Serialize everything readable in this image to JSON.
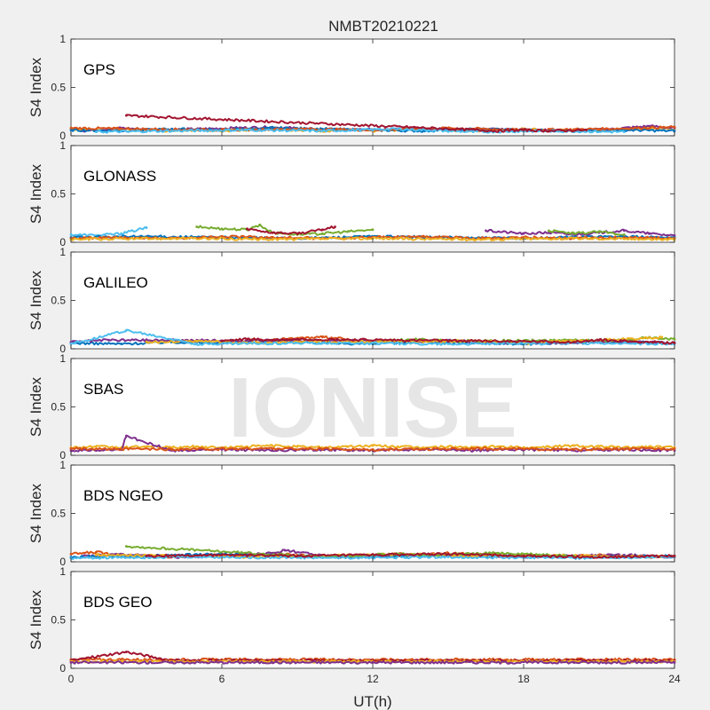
{
  "chart_data": {
    "type": "scatter",
    "title": "NMBT20210221",
    "xlabel": "UT(h)",
    "ylabel": "S4 Index",
    "xlim": [
      0,
      24
    ],
    "ylim": [
      0,
      1
    ],
    "xticks": [
      0,
      6,
      12,
      18,
      24
    ],
    "xtick_labels": [
      "0",
      "6",
      "12",
      "18",
      "24"
    ],
    "yticks": [
      0,
      0.5,
      1
    ],
    "ytick_labels": [
      "0",
      "0.5",
      "1"
    ],
    "watermark": "IONISE",
    "grid": false,
    "colors": [
      "#0072BD",
      "#D95319",
      "#EDB120",
      "#7E2F8E",
      "#77AC30",
      "#4DBEEE",
      "#A2142F"
    ],
    "panels": [
      {
        "label": "GPS",
        "series": [
          {
            "color": "#EDB120",
            "x": [
              0,
              1,
              2,
              3,
              4,
              5,
              6,
              7,
              8,
              9,
              10,
              11,
              12,
              13,
              14,
              15,
              16,
              17,
              18,
              19,
              20,
              21,
              22,
              23,
              24
            ],
            "y": [
              0.07,
              0.06,
              0.07,
              0.06,
              0.05,
              0.06,
              0.05,
              0.06,
              0.07,
              0.06,
              0.05,
              0.06,
              0.05,
              0.06,
              0.07,
              0.06,
              0.05,
              0.06,
              0.07,
              0.06,
              0.05,
              0.06,
              0.07,
              0.08,
              0.07
            ]
          },
          {
            "color": "#7E2F8E",
            "x": [
              0.5,
              2,
              3.5,
              5,
              6.5,
              8,
              9.5,
              11,
              12.5,
              14,
              15.5,
              17,
              18.5,
              20,
              21.5,
              23,
              24
            ],
            "y": [
              0.05,
              0.08,
              0.06,
              0.07,
              0.08,
              0.09,
              0.07,
              0.06,
              0.07,
              0.08,
              0.06,
              0.07,
              0.06,
              0.05,
              0.07,
              0.1,
              0.08
            ]
          },
          {
            "color": "#0072BD",
            "x": [
              0,
              2,
              4,
              6,
              8,
              10,
              12,
              14,
              16,
              18,
              20,
              22,
              24
            ],
            "y": [
              0.06,
              0.05,
              0.07,
              0.06,
              0.08,
              0.07,
              0.06,
              0.05,
              0.07,
              0.06,
              0.05,
              0.06,
              0.05
            ]
          },
          {
            "color": "#D95319",
            "x": [
              0,
              3,
              6,
              9,
              12,
              15,
              18,
              21,
              24
            ],
            "y": [
              0.08,
              0.07,
              0.06,
              0.07,
              0.06,
              0.08,
              0.06,
              0.07,
              0.09
            ]
          },
          {
            "color": "#4DBEEE",
            "x": [
              1,
              4,
              7,
              10,
              13,
              16,
              19,
              22
            ],
            "y": [
              0.04,
              0.05,
              0.06,
              0.05,
              0.07,
              0.04,
              0.05,
              0.04
            ]
          },
          {
            "color": "#A2142F",
            "x": [
              2.2,
              17,
              18,
              19,
              20.5
            ],
            "y": [
              0.21,
              0.05,
              0.06,
              0.05,
              0.06
            ]
          }
        ]
      },
      {
        "label": "GLONASS",
        "series": [
          {
            "color": "#4DBEEE",
            "x": [
              0,
              1,
              2,
              3
            ],
            "y": [
              0.08,
              0.07,
              0.09,
              0.15
            ]
          },
          {
            "color": "#77AC30",
            "x": [
              5,
              6,
              7,
              7.5,
              8,
              9,
              10,
              11,
              12
            ],
            "y": [
              0.16,
              0.14,
              0.13,
              0.18,
              0.1,
              0.08,
              0.09,
              0.11,
              0.13
            ]
          },
          {
            "color": "#A2142F",
            "x": [
              7,
              8,
              9,
              10,
              10.5
            ],
            "y": [
              0.14,
              0.1,
              0.09,
              0.13,
              0.16
            ]
          },
          {
            "color": "#7E2F8E",
            "x": [
              16.5,
              18,
              19,
              20,
              21,
              22,
              23,
              24
            ],
            "y": [
              0.12,
              0.09,
              0.1,
              0.08,
              0.1,
              0.12,
              0.09,
              0.07
            ]
          },
          {
            "color": "#77AC30",
            "x": [
              19,
              20,
              21,
              22
            ],
            "y": [
              0.12,
              0.09,
              0.11,
              0.08
            ]
          },
          {
            "color": "#0072BD",
            "x": [
              0,
              3,
              6,
              9,
              12,
              15,
              18,
              21,
              24
            ],
            "y": [
              0.05,
              0.06,
              0.05,
              0.04,
              0.06,
              0.05,
              0.04,
              0.06,
              0.05
            ]
          },
          {
            "color": "#D95319",
            "x": [
              0,
              2,
              4,
              6,
              8,
              10,
              12,
              14,
              16,
              18,
              20,
              22,
              24
            ],
            "y": [
              0.04,
              0.05,
              0.04,
              0.06,
              0.05,
              0.04,
              0.05,
              0.06,
              0.04,
              0.05,
              0.04,
              0.05,
              0.04
            ]
          },
          {
            "color": "#EDB120",
            "x": [
              0,
              4,
              8,
              12,
              16,
              20,
              24
            ],
            "y": [
              0.03,
              0.04,
              0.03,
              0.04,
              0.03,
              0.04,
              0.03
            ]
          }
        ]
      },
      {
        "label": "GALILEO",
        "series": [
          {
            "color": "#0072BD",
            "x": [
              0,
              2,
              4,
              6,
              8,
              10,
              12,
              14,
              16,
              18,
              20,
              22,
              24
            ],
            "y": [
              0.06,
              0.05,
              0.07,
              0.06,
              0.08,
              0.06,
              0.05,
              0.07,
              0.06,
              0.05,
              0.06,
              0.07,
              0.06
            ]
          },
          {
            "color": "#D95319",
            "x": [
              7,
              8,
              9,
              10,
              11
            ],
            "y": [
              0.1,
              0.09,
              0.11,
              0.12,
              0.1
            ]
          },
          {
            "color": "#7E2F8E",
            "x": [
              0,
              1.5,
              14,
              15,
              16,
              20,
              21,
              22,
              24
            ],
            "y": [
              0.07,
              0.09,
              0.08,
              0.09,
              0.07,
              0.06,
              0.08,
              0.07,
              0.06
            ]
          },
          {
            "color": "#77AC30",
            "x": [
              12,
              13,
              14,
              15,
              22,
              23,
              24
            ],
            "y": [
              0.07,
              0.09,
              0.1,
              0.08,
              0.09,
              0.12,
              0.1
            ]
          },
          {
            "color": "#EDB120",
            "x": [
              3,
              5,
              7,
              9,
              16,
              18,
              22,
              23.5
            ],
            "y": [
              0.07,
              0.08,
              0.06,
              0.07,
              0.08,
              0.06,
              0.1,
              0.12
            ]
          },
          {
            "color": "#4DBEEE",
            "x": [
              0,
              2.2,
              5,
              10,
              15,
              20,
              24
            ],
            "y": [
              0.05,
              0.19,
              0.05,
              0.06,
              0.05,
              0.06,
              0.05
            ]
          },
          {
            "color": "#A2142F",
            "x": [
              6,
              7,
              8,
              9,
              20,
              21,
              24
            ],
            "y": [
              0.08,
              0.1,
              0.09,
              0.1,
              0.07,
              0.09,
              0.06
            ]
          }
        ]
      },
      {
        "label": "SBAS",
        "series": [
          {
            "color": "#EDB120",
            "x": [
              0,
              1,
              2,
              3,
              4,
              5,
              6,
              7,
              8,
              9,
              10,
              11,
              12,
              13,
              14,
              15,
              16,
              17,
              18,
              19,
              20,
              21,
              22,
              23,
              24
            ],
            "y": [
              0.08,
              0.09,
              0.08,
              0.09,
              0.08,
              0.09,
              0.08,
              0.09,
              0.1,
              0.09,
              0.08,
              0.09,
              0.1,
              0.09,
              0.08,
              0.09,
              0.08,
              0.09,
              0.08,
              0.09,
              0.1,
              0.09,
              0.08,
              0.09,
              0.08
            ]
          },
          {
            "color": "#7E2F8E",
            "x": [
              0,
              2,
              2.2,
              4,
              6,
              8,
              10,
              12,
              14,
              16,
              18,
              20,
              22,
              24
            ],
            "y": [
              0.05,
              0.06,
              0.2,
              0.05,
              0.06,
              0.05,
              0.06,
              0.05,
              0.06,
              0.05,
              0.06,
              0.05,
              0.06,
              0.05
            ]
          },
          {
            "color": "#D95319",
            "x": [
              0,
              4,
              8,
              12,
              16,
              20,
              24
            ],
            "y": [
              0.07,
              0.06,
              0.07,
              0.06,
              0.07,
              0.06,
              0.07
            ]
          }
        ]
      },
      {
        "label": "BDS NGEO",
        "series": [
          {
            "color": "#D95319",
            "x": [
              0,
              1,
              2,
              3,
              4,
              5,
              6,
              7,
              8,
              9,
              10,
              11,
              12,
              13,
              14,
              15,
              16,
              17,
              18,
              19,
              20,
              21,
              22,
              23,
              24
            ],
            "y": [
              0.08,
              0.1,
              0.07,
              0.06,
              0.05,
              0.06,
              0.07,
              0.06,
              0.08,
              0.07,
              0.06,
              0.05,
              0.06,
              0.08,
              0.07,
              0.09,
              0.08,
              0.07,
              0.06,
              0.05,
              0.06,
              0.07,
              0.06,
              0.05,
              0.06
            ]
          },
          {
            "color": "#7E2F8E",
            "x": [
              0.5,
              2,
              4,
              6,
              8,
              8.5,
              10,
              12,
              14,
              16,
              18,
              20,
              22,
              24
            ],
            "y": [
              0.06,
              0.08,
              0.05,
              0.06,
              0.09,
              0.12,
              0.06,
              0.05,
              0.08,
              0.06,
              0.05,
              0.06,
              0.07,
              0.05
            ]
          },
          {
            "color": "#0072BD",
            "x": [
              0,
              3,
              6,
              9,
              12,
              15,
              18,
              21,
              24
            ],
            "y": [
              0.05,
              0.06,
              0.08,
              0.06,
              0.05,
              0.07,
              0.06,
              0.05,
              0.06
            ]
          },
          {
            "color": "#EDB120",
            "x": [
              1,
              4,
              7,
              10,
              13,
              16,
              19,
              22,
              24
            ],
            "y": [
              0.07,
              0.06,
              0.05,
              0.06,
              0.08,
              0.06,
              0.07,
              0.05,
              0.06
            ]
          },
          {
            "color": "#77AC30",
            "x": [
              2.2,
              10,
              13,
              14,
              17,
              20
            ],
            "y": [
              0.16,
              0.05,
              0.08,
              0.07,
              0.09,
              0.06
            ]
          },
          {
            "color": "#4DBEEE",
            "x": [
              0,
              5,
              10,
              15,
              20,
              24
            ],
            "y": [
              0.04,
              0.05,
              0.04,
              0.05,
              0.04,
              0.05
            ]
          },
          {
            "color": "#A2142F",
            "x": [
              3,
              6,
              9,
              15,
              18,
              21,
              24
            ],
            "y": [
              0.06,
              0.07,
              0.06,
              0.08,
              0.06,
              0.05,
              0.06
            ]
          }
        ]
      },
      {
        "label": "BDS GEO",
        "series": [
          {
            "color": "#D95319",
            "x": [
              0,
              2,
              4,
              6,
              8,
              10,
              12,
              14,
              16,
              18,
              20,
              22,
              24
            ],
            "y": [
              0.09,
              0.09,
              0.09,
              0.09,
              0.09,
              0.09,
              0.09,
              0.09,
              0.09,
              0.09,
              0.09,
              0.09,
              0.09
            ]
          },
          {
            "color": "#A2142F",
            "x": [
              0,
              2.2,
              4,
              6,
              8,
              10,
              12,
              14,
              16,
              18,
              20,
              22,
              24
            ],
            "y": [
              0.08,
              0.17,
              0.08,
              0.08,
              0.08,
              0.08,
              0.08,
              0.08,
              0.08,
              0.08,
              0.08,
              0.08,
              0.08
            ]
          },
          {
            "color": "#EDB120",
            "x": [
              0,
              2,
              4,
              6,
              8,
              10,
              12,
              14,
              16,
              18,
              20,
              22,
              24
            ],
            "y": [
              0.07,
              0.07,
              0.07,
              0.07,
              0.07,
              0.07,
              0.07,
              0.07,
              0.07,
              0.07,
              0.07,
              0.07,
              0.07
            ]
          },
          {
            "color": "#7E2F8E",
            "x": [
              0,
              4,
              8,
              12,
              16,
              20,
              24
            ],
            "y": [
              0.06,
              0.06,
              0.06,
              0.06,
              0.06,
              0.06,
              0.06
            ]
          }
        ]
      }
    ]
  }
}
